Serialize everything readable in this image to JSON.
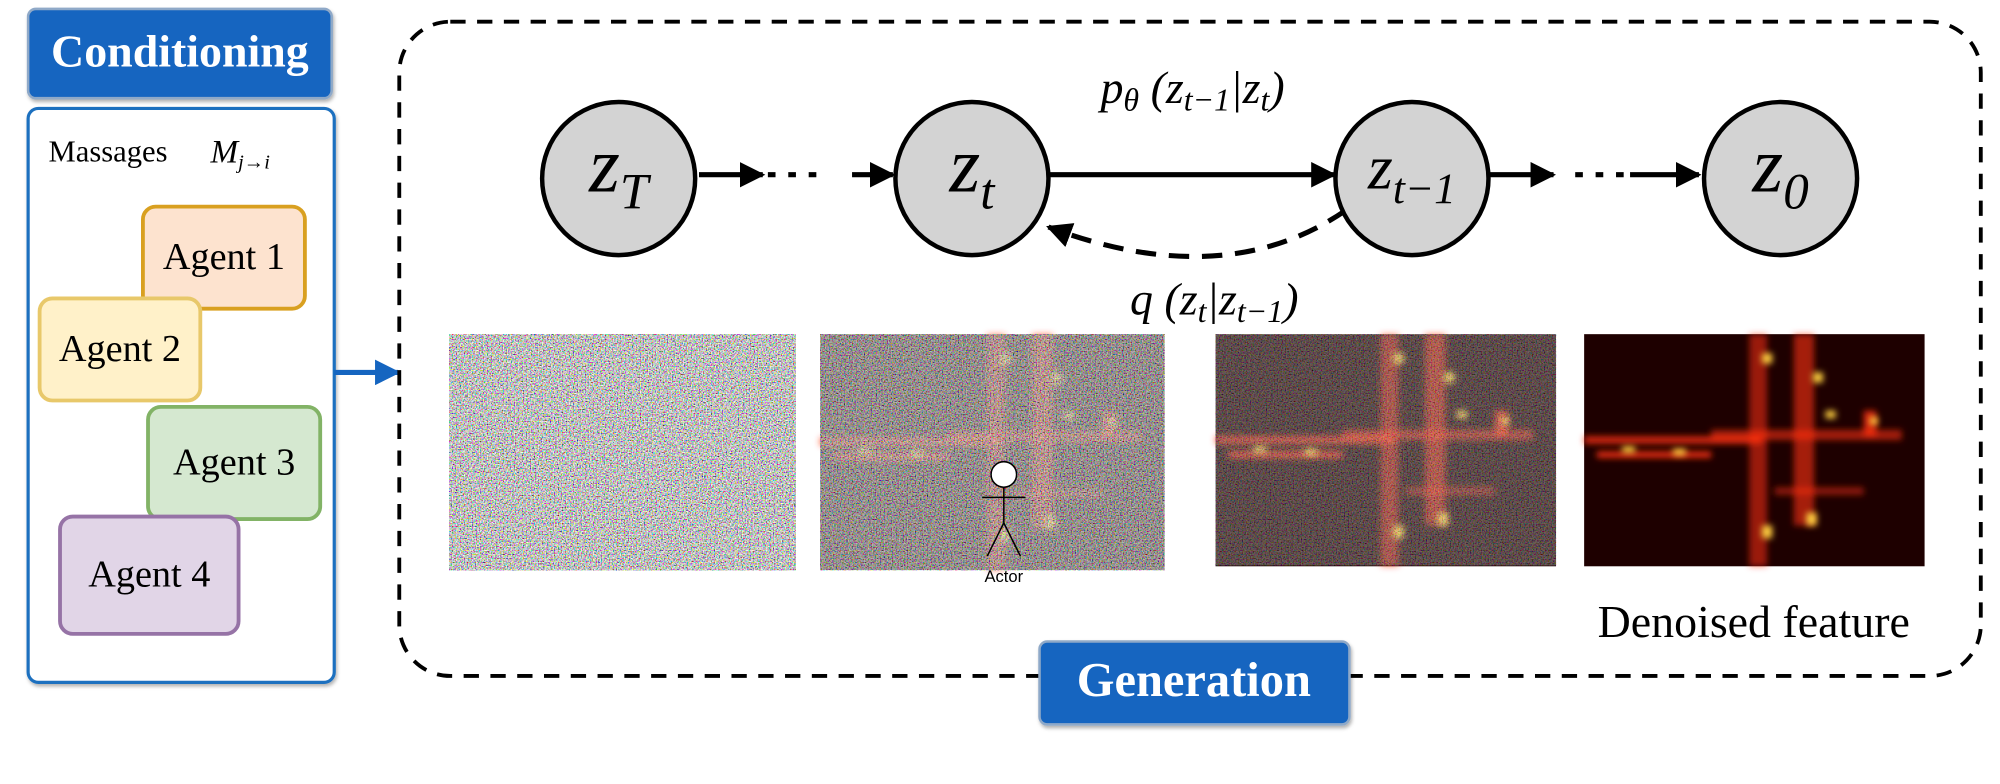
{
  "conditioning": {
    "title": "Conditioning",
    "messages_label": "Massages",
    "messages_symbol": {
      "base": "M",
      "sub": "j→i"
    },
    "agents": [
      "Agent 1",
      "Agent 2",
      "Agent 3",
      "Agent 4"
    ]
  },
  "generation": {
    "title": "Generation",
    "nodes": [
      {
        "base": "z",
        "sub": "T"
      },
      {
        "base": "z",
        "sub": "t"
      },
      {
        "base": "z",
        "sub": "t−1"
      },
      {
        "base": "z",
        "sub": "0"
      }
    ],
    "forward_label": [
      {
        "text": "p"
      },
      {
        "text": "θ",
        "sub": true
      },
      {
        "text": " (z"
      },
      {
        "text": "t−1",
        "sub": true
      },
      {
        "text": "|z"
      },
      {
        "text": "t",
        "sub": true
      },
      {
        "text": ")"
      }
    ],
    "reverse_label": [
      {
        "text": "q (z"
      },
      {
        "text": "t",
        "sub": true
      },
      {
        "text": "|z"
      },
      {
        "text": "t−1",
        "sub": true
      },
      {
        "text": ")"
      }
    ],
    "actor_label": "Actor",
    "output_label": "Denoised feature"
  }
}
